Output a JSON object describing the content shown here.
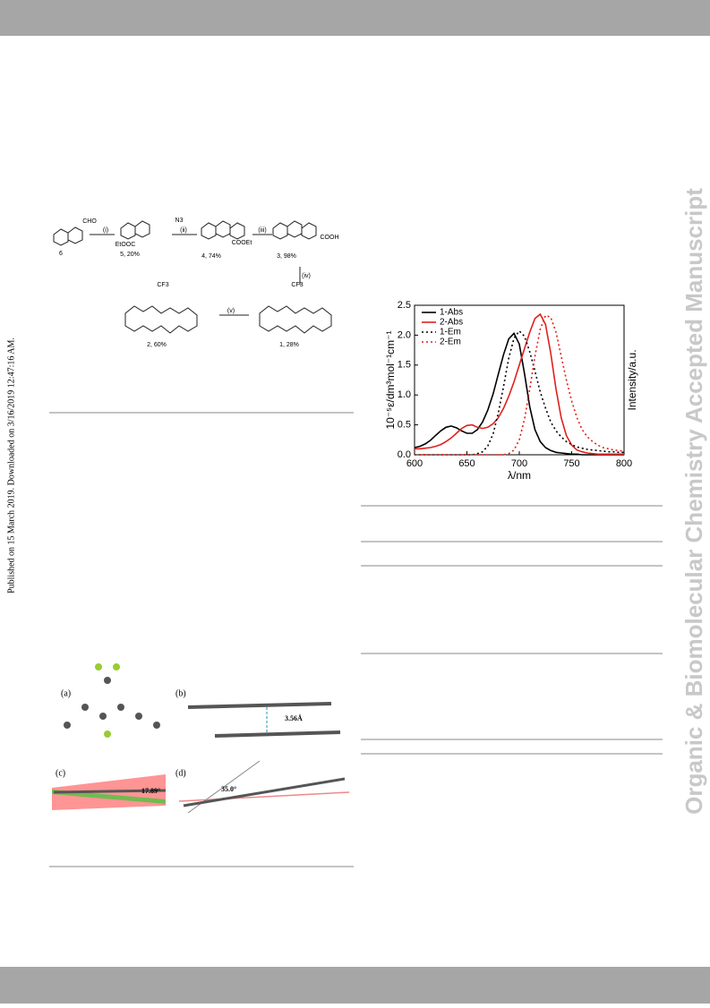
{
  "side_note": "Published on 15 March 2019. Downloaded on 3/16/2019 12:47:16 AM.",
  "watermark": "Organic & Biomolecular Chemistry Accepted Manuscript",
  "scheme": {
    "labels": [
      "CHO",
      "(i)",
      "(ii)",
      "(iii)",
      "(iv)",
      "(v)",
      "6",
      "5, 20%",
      "4, 74%",
      "3, 98%",
      "1, 28%",
      "2, 60%",
      "EtOOC",
      "COOEt",
      "COOH",
      "N3",
      "CF3",
      "CF3"
    ]
  },
  "figure": {
    "labels": [
      "(a)",
      "(b)",
      "(c)",
      "(d)",
      "3.56Å",
      "17.89°",
      "35.0°"
    ]
  },
  "chart_data": {
    "type": "line",
    "ylabel": "10⁻⁵ε/dm³mol⁻¹cm⁻¹",
    "y2label": "Intensity/a.u.",
    "xlabel": "λ/nm",
    "x": [
      600,
      605,
      610,
      615,
      620,
      625,
      630,
      635,
      640,
      645,
      650,
      655,
      660,
      665,
      670,
      675,
      680,
      685,
      690,
      695,
      700,
      705,
      710,
      715,
      720,
      725,
      730,
      735,
      740,
      745,
      750,
      755,
      760,
      765,
      770,
      775,
      780,
      785,
      790,
      795,
      800
    ],
    "series": [
      {
        "name": "1-Abs",
        "color": "#000000",
        "dash": false,
        "values": [
          0.12,
          0.14,
          0.18,
          0.24,
          0.32,
          0.4,
          0.46,
          0.48,
          0.45,
          0.4,
          0.36,
          0.36,
          0.42,
          0.55,
          0.75,
          1.02,
          1.35,
          1.68,
          1.94,
          2.03,
          1.85,
          1.35,
          0.8,
          0.42,
          0.22,
          0.12,
          0.07,
          0.04,
          0.03,
          0.02,
          0.01,
          0.01,
          0,
          0,
          0,
          0,
          0,
          0,
          0,
          0,
          0
        ]
      },
      {
        "name": "2-Abs",
        "color": "#e0201b",
        "dash": false,
        "values": [
          0.1,
          0.1,
          0.11,
          0.12,
          0.14,
          0.17,
          0.22,
          0.28,
          0.36,
          0.44,
          0.49,
          0.5,
          0.46,
          0.44,
          0.46,
          0.52,
          0.62,
          0.78,
          0.98,
          1.22,
          1.5,
          1.78,
          2.05,
          2.28,
          2.35,
          2.18,
          1.7,
          1.1,
          0.62,
          0.32,
          0.16,
          0.08,
          0.05,
          0.03,
          0.02,
          0.01,
          0.01,
          0.01,
          0.01,
          0.01,
          0.01
        ]
      },
      {
        "name": "1-Em",
        "color": "#000000",
        "dash": true,
        "values": [
          0,
          0,
          0,
          0,
          0,
          0,
          0,
          0,
          0,
          0,
          0,
          0,
          0.02,
          0.05,
          0.15,
          0.35,
          0.7,
          1.15,
          1.62,
          1.95,
          2.07,
          1.98,
          1.72,
          1.4,
          1.05,
          0.78,
          0.55,
          0.4,
          0.3,
          0.22,
          0.17,
          0.13,
          0.11,
          0.09,
          0.08,
          0.07,
          0.06,
          0.05,
          0.05,
          0.04,
          0.04
        ]
      },
      {
        "name": "2-Em",
        "color": "#e0201b",
        "dash": true,
        "values": [
          0,
          0,
          0,
          0,
          0,
          0,
          0,
          0,
          0,
          0,
          0,
          0,
          0,
          0,
          0,
          0,
          0,
          0,
          0.02,
          0.08,
          0.25,
          0.6,
          1.1,
          1.65,
          2.1,
          2.33,
          2.3,
          2.05,
          1.65,
          1.25,
          0.9,
          0.62,
          0.42,
          0.3,
          0.22,
          0.16,
          0.12,
          0.1,
          0.08,
          0.07,
          0.06
        ]
      }
    ],
    "xlim": [
      600,
      800
    ],
    "xticks": [
      600,
      650,
      700,
      750,
      800
    ],
    "ylim": [
      0,
      2.5
    ],
    "yticks": [
      {
        "value": 0,
        "label": "0.0"
      },
      0.5,
      {
        "value": 1,
        "label": "1.0"
      },
      1.5,
      {
        "value": 2,
        "label": "2.0"
      },
      2.5
    ]
  }
}
